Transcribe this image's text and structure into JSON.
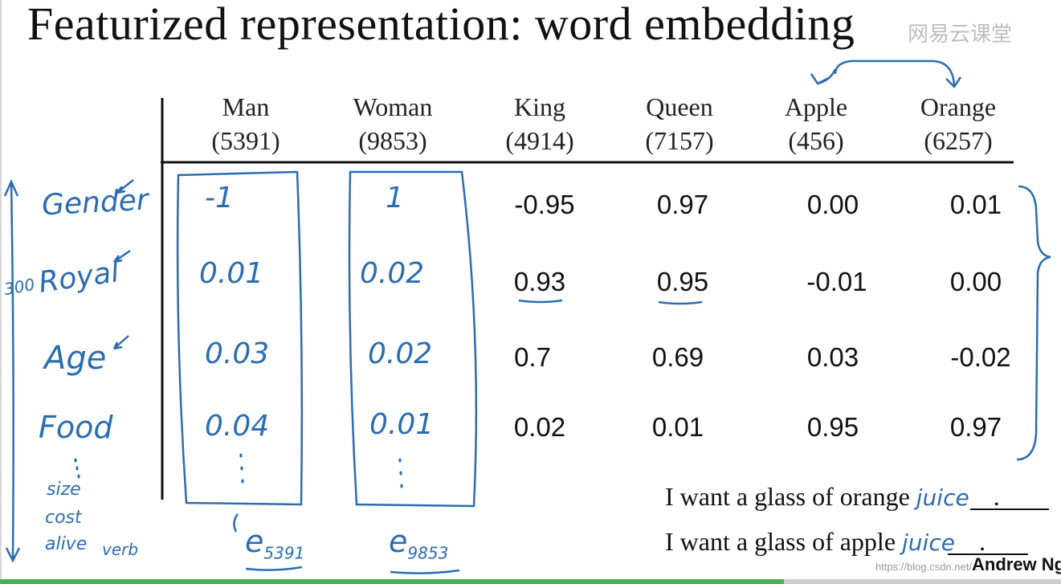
{
  "title": "Featurized representation: word embedding",
  "watermark": "网易云课堂",
  "columns": [
    {
      "word": "Man",
      "index": "(5391)"
    },
    {
      "word": "Woman",
      "index": "(9853)"
    },
    {
      "word": "King",
      "index": "(4914)"
    },
    {
      "word": "Queen",
      "index": "(7157)"
    },
    {
      "word": "Apple",
      "index": "(456)"
    },
    {
      "word": "Orange",
      "index": "(6257)"
    }
  ],
  "features": [
    "Gender",
    "Royal",
    "Age",
    "Food"
  ],
  "extra_features": [
    "size",
    "cost",
    "alive",
    "verb"
  ],
  "dimension_note": "300",
  "handwritten": {
    "man": [
      "-1",
      "0.01",
      "0.03",
      "0.04"
    ],
    "woman": [
      "1",
      "0.02",
      "0.02",
      "0.01"
    ],
    "e_man": "e5391",
    "e_woman": "e9853"
  },
  "values": {
    "king": [
      "-0.95",
      "0.93",
      "0.7",
      "0.02"
    ],
    "queen": [
      "0.97",
      "0.95",
      "0.69",
      "0.01"
    ],
    "apple": [
      "0.00",
      "-0.01",
      "0.03",
      "0.95"
    ],
    "orange": [
      "0.01",
      "0.00",
      "-0.02",
      "0.97"
    ]
  },
  "sentences": {
    "s1_prefix": "I want a glass of orange",
    "s1_word": "juice",
    "s2_prefix": "I want a glass of apple",
    "s2_word": "juice",
    "period": "."
  },
  "author": "Andrew Ng",
  "blog": "https://blog.csdn.net/...",
  "colors": {
    "ink": "#2c6db0",
    "text": "#111111",
    "progress": "#4caf50"
  }
}
